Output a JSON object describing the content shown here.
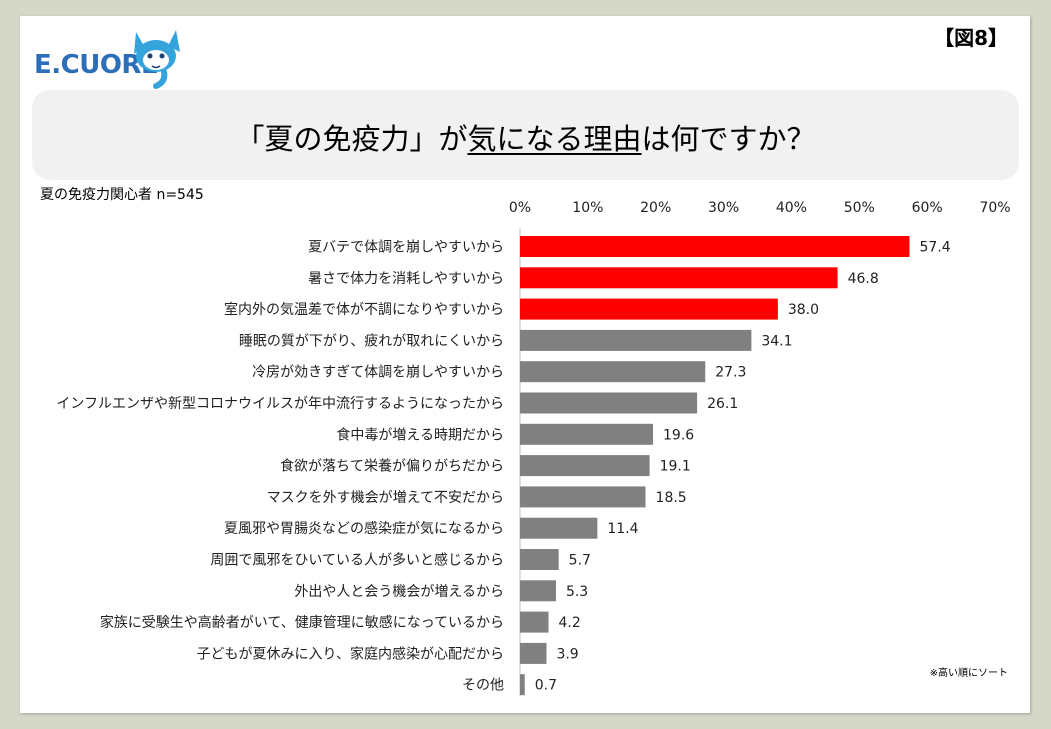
{
  "header": {
    "logo_text": "E.CUORE",
    "figure_label": "【図8】",
    "title_parts": [
      {
        "text": "「夏の免疫力」が",
        "underline": false
      },
      {
        "text": "気になる理由",
        "underline": true
      },
      {
        "text": "は何ですか？",
        "underline": false
      }
    ]
  },
  "subtitle": "夏の免疫力関心者 n=545",
  "note": "※高い順にソート",
  "colors": {
    "highlight": "#ff0000",
    "default": "#808080",
    "logo": "#2c6fb8"
  },
  "chart_data": {
    "type": "bar",
    "orientation": "horizontal",
    "xlim": [
      0,
      70
    ],
    "tick_values": [
      0,
      10,
      20,
      30,
      40,
      50,
      60,
      70
    ],
    "tick_labels": [
      "0%",
      "10%",
      "20%",
      "30%",
      "40%",
      "50%",
      "60%",
      "70%"
    ],
    "highlight_top": 3,
    "categories": [
      "夏バテで体調を崩しやすいから",
      "暑さで体力を消耗しやすいから",
      "室内外の気温差で体が不調になりやすいから",
      "睡眠の質が下がり、疲れが取れにくいから",
      "冷房が効きすぎて体調を崩しやすいから",
      "インフルエンザや新型コロナウイルスが年中流行するようになったから",
      "食中毒が増える時期だから",
      "食欲が落ちて栄養が偏りがちだから",
      "マスクを外す機会が増えて不安だから",
      "夏風邪や胃腸炎などの感染症が気になるから",
      "周囲で風邪をひいている人が多いと感じるから",
      "外出や人と会う機会が増えるから",
      "家族に受験生や高齢者がいて、健康管理に敏感になっているから",
      "子どもが夏休みに入り、家庭内感染が心配だから",
      "その他"
    ],
    "values": [
      57.4,
      46.8,
      38.0,
      34.1,
      27.3,
      26.1,
      19.6,
      19.1,
      18.5,
      11.4,
      5.7,
      5.3,
      4.2,
      3.9,
      0.7
    ],
    "value_labels": [
      "57.4",
      "46.8",
      "38.0",
      "34.1",
      "27.3",
      "26.1",
      "19.6",
      "19.1",
      "18.5",
      "11.4",
      "5.7",
      "5.3",
      "4.2",
      "3.9",
      "0.7"
    ]
  }
}
